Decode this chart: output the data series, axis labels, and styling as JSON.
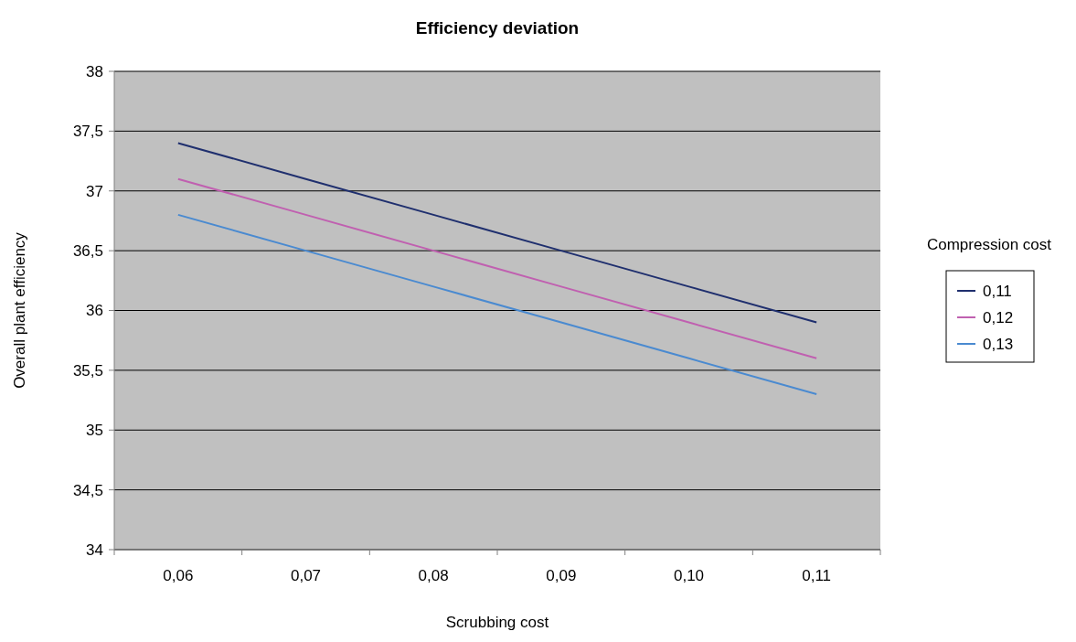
{
  "chart_data": {
    "type": "line",
    "title": "Efficiency deviation",
    "xlabel": "Scrubbing cost",
    "ylabel": "Overall plant efficiency",
    "legend_title": "Compression cost",
    "categories": [
      "0,06",
      "0,07",
      "0,08",
      "0,09",
      "0,10",
      "0,11"
    ],
    "series": [
      {
        "name": "0,11",
        "color": "#1f2f6e",
        "values": [
          37.4,
          37.1,
          36.8,
          36.5,
          36.2,
          35.9
        ]
      },
      {
        "name": "0,12",
        "color": "#c060b0",
        "values": [
          37.1,
          36.8,
          36.5,
          36.2,
          35.9,
          35.6
        ]
      },
      {
        "name": "0,13",
        "color": "#4a8ad0",
        "values": [
          36.8,
          36.5,
          36.2,
          35.9,
          35.6,
          35.3
        ]
      }
    ],
    "ylim": [
      34,
      38
    ],
    "yticks": [
      34,
      {
        "value": 34.5,
        "label": "34,5"
      },
      35,
      {
        "value": 35.5,
        "label": "35,5"
      },
      36,
      {
        "value": 36.5,
        "label": "36,5"
      },
      37,
      {
        "value": 37.5,
        "label": "37,5"
      },
      38
    ],
    "grid": "y",
    "legend": "right",
    "marker": "none",
    "line_style": "solid"
  }
}
